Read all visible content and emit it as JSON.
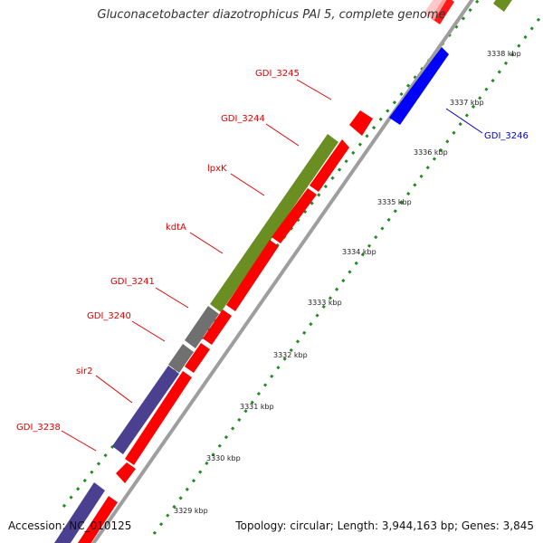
{
  "title": "Gluconacetobacter diazotrophicus PAl 5, complete genome",
  "accession": "Accession: NC_010125",
  "topology": "Topology: circular; Length: 3,944,163 bp; Genes: 3,845",
  "colors": {
    "forward_cds": "#ff0000",
    "reverse_cds": "#0000ff",
    "green_feature": "#6b8e23",
    "gray_feature": "#707070",
    "purple_feature": "#4b3f8f",
    "backbone": "#9e9e9e",
    "tick": "#228b22",
    "label_red": "#e00000",
    "label_blue": "#0000dd"
  },
  "ticks": [
    {
      "label": "3329 kbp"
    },
    {
      "label": "3330 kbp"
    },
    {
      "label": "3331 kbp"
    },
    {
      "label": "3332 kbp"
    },
    {
      "label": "3333 kbp"
    },
    {
      "label": "3334 kbp"
    },
    {
      "label": "3335 kbp"
    },
    {
      "label": "3336 kbp"
    },
    {
      "label": "3337 kbp"
    },
    {
      "label": "3338 kbp"
    }
  ],
  "gene_labels": [
    {
      "name": "GDI_3245",
      "color": "red"
    },
    {
      "name": "GDI_3244",
      "color": "red"
    },
    {
      "name": "lpxK",
      "color": "red"
    },
    {
      "name": "kdtA",
      "color": "red"
    },
    {
      "name": "GDI_3241",
      "color": "red"
    },
    {
      "name": "GDI_3240",
      "color": "red"
    },
    {
      "name": "sir2",
      "color": "red"
    },
    {
      "name": "GDI_3238",
      "color": "red"
    },
    {
      "name": "GDI_3246",
      "color": "blue"
    }
  ]
}
